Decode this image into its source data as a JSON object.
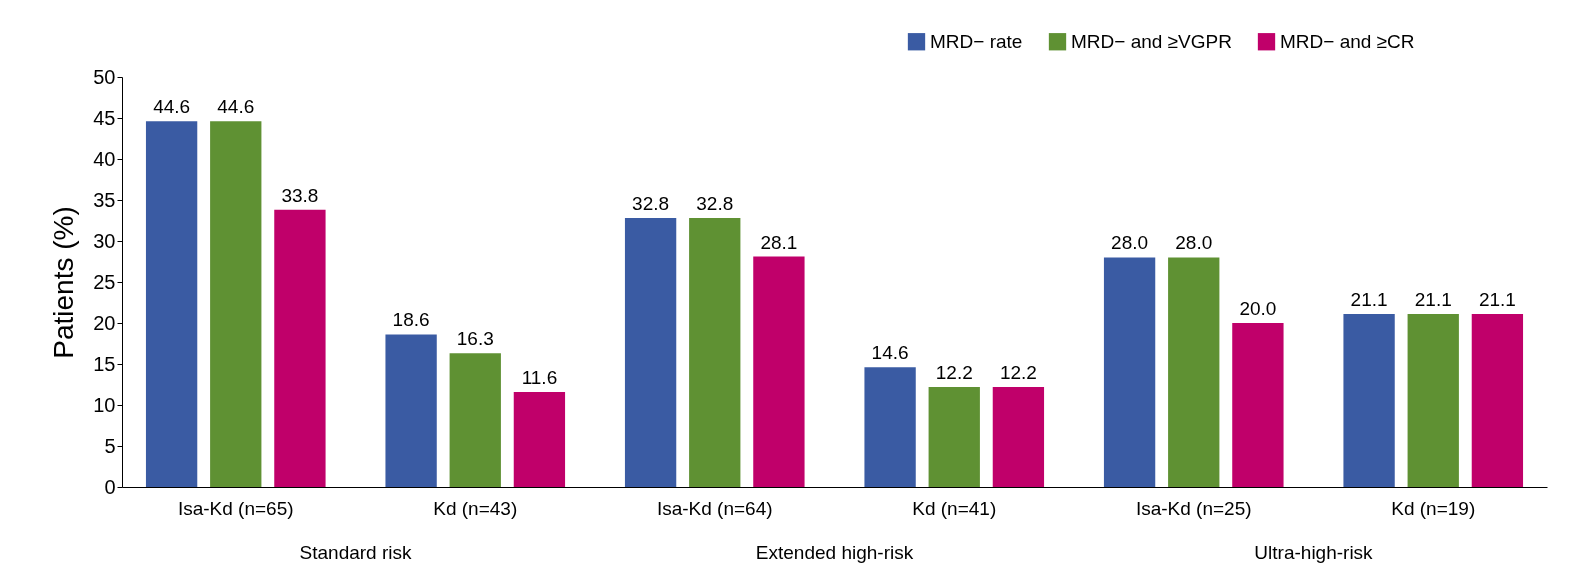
{
  "chart_data": {
    "type": "bar",
    "ylabel": "Patients (%)",
    "categories": [
      "Isa-Kd (n=65)",
      "Kd (n=43)",
      "Isa-Kd (n=64)",
      "Kd (n=41)",
      "Isa-Kd (n=25)",
      "Kd (n=19)"
    ],
    "series": [
      {
        "name": "MRD− rate",
        "color": "#3a5ba3",
        "values": [
          44.6,
          18.6,
          32.8,
          14.6,
          28.0,
          21.1
        ],
        "value_labels": [
          "44.6",
          "18.6",
          "32.8",
          "14.6",
          "28.0",
          "21.1"
        ]
      },
      {
        "name": "MRD− and ≥VGPR",
        "color": "#5f9133",
        "values": [
          44.6,
          16.3,
          32.8,
          12.2,
          28.0,
          21.1
        ],
        "value_labels": [
          "44.6",
          "16.3",
          "32.8",
          "12.2",
          "28.0",
          "21.1"
        ]
      },
      {
        "name": "MRD− and ≥CR",
        "color": "#c0006a",
        "values": [
          33.8,
          11.6,
          28.1,
          12.2,
          20.0,
          21.1
        ],
        "value_labels": [
          "33.8",
          "11.6",
          "28.1",
          "12.2",
          "20.0",
          "21.1"
        ]
      }
    ],
    "ylim": [
      0,
      50
    ],
    "yticks": [
      0,
      5,
      10,
      15,
      20,
      25,
      30,
      35,
      40,
      45,
      50
    ],
    "legend": "top right",
    "grid": false,
    "annotations": [
      "Standard risk",
      "Extended high-risk",
      "Ultra-high-risk"
    ]
  }
}
